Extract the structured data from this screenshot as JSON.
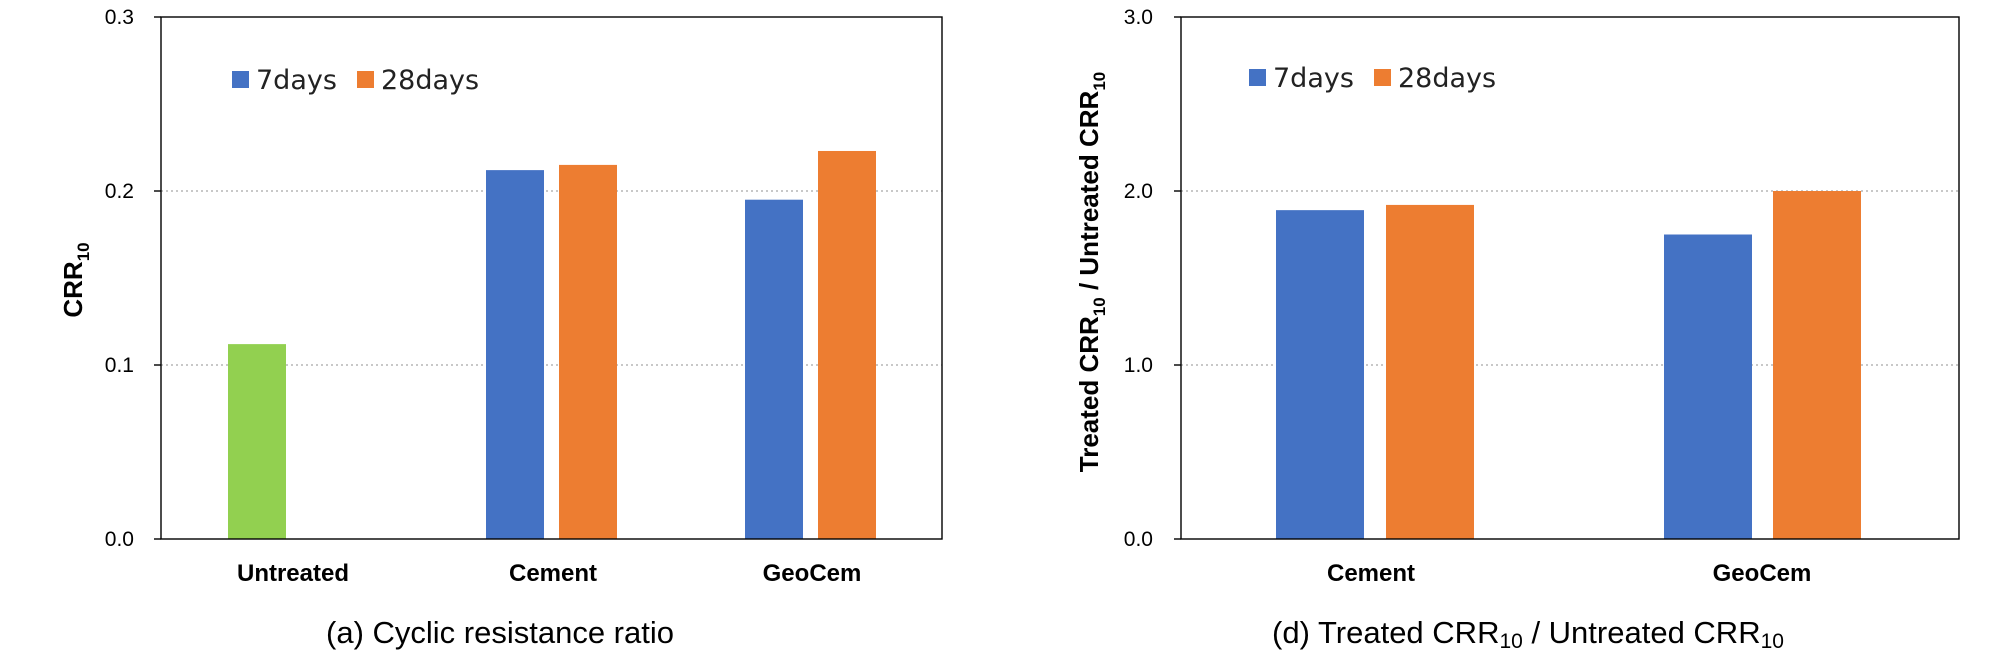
{
  "colors": {
    "blue": "#4472C4",
    "orange": "#ED7D31",
    "green": "#92D050",
    "grid": "#A6A6A6",
    "axis": "#000000"
  },
  "chart_data": [
    {
      "type": "bar",
      "caption": "(a) Cyclic resistance ratio",
      "ylabel": {
        "main": "CRR",
        "sub": "10"
      },
      "ylim": [
        0,
        0.3
      ],
      "yticks": [
        "0.0",
        "0.1",
        "0.2",
        "0.3"
      ],
      "grid": true,
      "legend_position": "top-left",
      "legend": [
        "7days",
        "28days"
      ],
      "categories": [
        "Untreated",
        "Cement",
        "GeoCem"
      ],
      "series": [
        {
          "name": "Untreated",
          "values": [
            0.112,
            null,
            null
          ]
        },
        {
          "name": "7days",
          "values": [
            null,
            0.212,
            0.195
          ]
        },
        {
          "name": "28days",
          "values": [
            null,
            0.215,
            0.223
          ]
        }
      ]
    },
    {
      "type": "bar",
      "caption": {
        "prefix": "(d) Treated ",
        "a": "CRR",
        "a_sub": "10",
        "mid": " / Untreated ",
        "b": "CRR",
        "b_sub": "10"
      },
      "ylabel": {
        "prefix": "Treated ",
        "a": "CRR",
        "a_sub": "10",
        "mid": " / Untreated ",
        "b": "CRR",
        "b_sub": "10"
      },
      "ylim": [
        0,
        3.0
      ],
      "yticks": [
        "0.0",
        "1.0",
        "2.0",
        "3.0"
      ],
      "grid": true,
      "legend_position": "top-left",
      "legend": [
        "7days",
        "28days"
      ],
      "categories": [
        "Cement",
        "GeoCem"
      ],
      "series": [
        {
          "name": "7days",
          "values": [
            1.89,
            1.75
          ]
        },
        {
          "name": "28days",
          "values": [
            1.92,
            2.0
          ]
        }
      ]
    }
  ]
}
